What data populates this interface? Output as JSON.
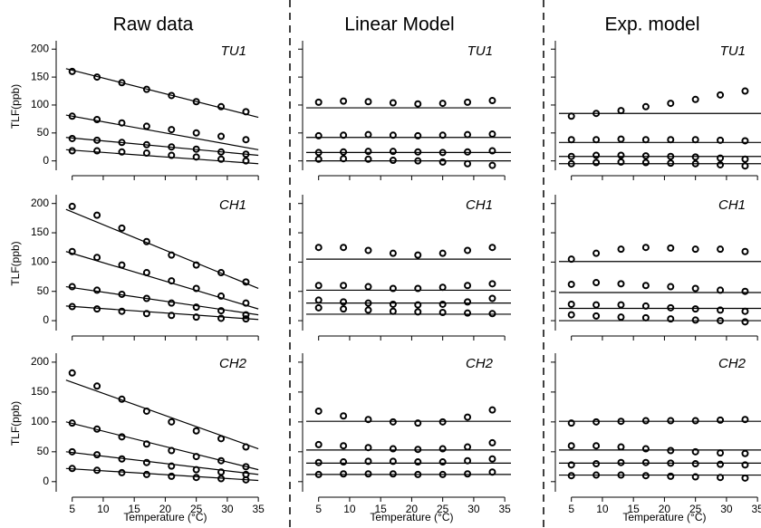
{
  "chart_data": [
    {
      "type": "scatter",
      "title": "Raw data",
      "label": "TU1",
      "ylabel": "TLF(ppb)",
      "xlim": [
        3,
        36
      ],
      "ylim": [
        -20,
        215
      ],
      "xticks": [
        5,
        10,
        15,
        20,
        25,
        30,
        35
      ],
      "yticks": [
        0,
        50,
        100,
        150,
        200
      ],
      "xtick_labels": false,
      "ytick_labels": true,
      "x": [
        5,
        9,
        13,
        17,
        21,
        25,
        29,
        33
      ],
      "series": [
        {
          "values": [
            160,
            150,
            140,
            128,
            117,
            106,
            97,
            88
          ]
        },
        {
          "values": [
            80,
            74,
            68,
            62,
            56,
            50,
            44,
            38
          ]
        },
        {
          "values": [
            40,
            37,
            33,
            29,
            25,
            21,
            16,
            12
          ]
        },
        {
          "values": [
            18,
            18,
            16,
            14,
            10,
            7,
            3,
            0
          ]
        }
      ],
      "lines": [
        {
          "x": [
            4,
            35
          ],
          "values": [
            165,
            78
          ]
        },
        {
          "x": [
            4,
            35
          ],
          "values": [
            82,
            20
          ]
        },
        {
          "x": [
            4,
            35
          ],
          "values": [
            42,
            10
          ]
        },
        {
          "x": [
            4,
            35
          ],
          "values": [
            20,
            -5
          ]
        }
      ]
    },
    {
      "type": "scatter",
      "title": "Linear Model",
      "label": "TU1",
      "xlim": [
        3,
        36
      ],
      "ylim": [
        -20,
        215
      ],
      "xticks": [
        5,
        10,
        15,
        20,
        25,
        30,
        35
      ],
      "yticks": [
        0,
        50,
        100,
        150,
        200
      ],
      "xtick_labels": false,
      "ytick_labels": false,
      "x": [
        5,
        9,
        13,
        17,
        21,
        25,
        29,
        33
      ],
      "series": [
        {
          "values": [
            105,
            107,
            106,
            104,
            102,
            103,
            105,
            108
          ]
        },
        {
          "values": [
            45,
            46,
            47,
            46,
            45,
            46,
            47,
            48
          ]
        },
        {
          "values": [
            15,
            16,
            17,
            17,
            16,
            15,
            16,
            18
          ]
        },
        {
          "values": [
            3,
            4,
            3,
            1,
            0,
            -2,
            -5,
            -8
          ]
        }
      ],
      "lines": [
        {
          "x": [
            3,
            36
          ],
          "values": [
            95,
            95
          ]
        },
        {
          "x": [
            3,
            36
          ],
          "values": [
            42,
            42
          ]
        },
        {
          "x": [
            3,
            36
          ],
          "values": [
            15,
            15
          ]
        },
        {
          "x": [
            3,
            36
          ],
          "values": [
            0,
            0
          ]
        }
      ]
    },
    {
      "type": "scatter",
      "title": "Exp. model",
      "label": "TU1",
      "xlim": [
        3,
        36
      ],
      "ylim": [
        -20,
        215
      ],
      "xticks": [
        5,
        10,
        15,
        20,
        25,
        30,
        35
      ],
      "yticks": [
        0,
        50,
        100,
        150,
        200
      ],
      "xtick_labels": false,
      "ytick_labels": false,
      "x": [
        5,
        9,
        13,
        17,
        21,
        25,
        29,
        33
      ],
      "series": [
        {
          "values": [
            80,
            85,
            90,
            97,
            103,
            110,
            118,
            125
          ]
        },
        {
          "values": [
            38,
            38,
            39,
            38,
            38,
            38,
            37,
            36
          ]
        },
        {
          "values": [
            8,
            10,
            10,
            9,
            8,
            7,
            5,
            3
          ]
        },
        {
          "values": [
            -5,
            -3,
            -2,
            -3,
            -4,
            -5,
            -7,
            -9
          ]
        }
      ],
      "lines": [
        {
          "x": [
            3,
            36
          ],
          "values": [
            85,
            85
          ]
        },
        {
          "x": [
            3,
            36
          ],
          "values": [
            33,
            33
          ]
        },
        {
          "x": [
            3,
            36
          ],
          "values": [
            8,
            8
          ]
        },
        {
          "x": [
            3,
            36
          ],
          "values": [
            -5,
            -5
          ]
        }
      ]
    },
    {
      "type": "scatter",
      "label": "CH1",
      "ylabel": "TLF(ppb)",
      "xlim": [
        3,
        36
      ],
      "ylim": [
        -20,
        215
      ],
      "xticks": [
        5,
        10,
        15,
        20,
        25,
        30,
        35
      ],
      "yticks": [
        0,
        50,
        100,
        150,
        200
      ],
      "xtick_labels": false,
      "ytick_labels": true,
      "x": [
        5,
        9,
        13,
        17,
        21,
        25,
        29,
        33
      ],
      "series": [
        {
          "values": [
            195,
            180,
            158,
            135,
            112,
            95,
            82,
            66
          ]
        },
        {
          "values": [
            118,
            108,
            95,
            82,
            68,
            55,
            42,
            30
          ]
        },
        {
          "values": [
            58,
            52,
            45,
            38,
            30,
            23,
            17,
            10
          ]
        },
        {
          "values": [
            24,
            20,
            16,
            12,
            9,
            6,
            4,
            3
          ]
        }
      ],
      "lines": [
        {
          "x": [
            4,
            35
          ],
          "values": [
            190,
            55
          ]
        },
        {
          "x": [
            4,
            35
          ],
          "values": [
            118,
            20
          ]
        },
        {
          "x": [
            4,
            35
          ],
          "values": [
            58,
            10
          ]
        },
        {
          "x": [
            4,
            35
          ],
          "values": [
            25,
            2
          ]
        }
      ]
    },
    {
      "type": "scatter",
      "label": "CH1",
      "xlim": [
        3,
        36
      ],
      "ylim": [
        -20,
        215
      ],
      "xticks": [
        5,
        10,
        15,
        20,
        25,
        30,
        35
      ],
      "yticks": [
        0,
        50,
        100,
        150,
        200
      ],
      "xtick_labels": false,
      "ytick_labels": false,
      "x": [
        5,
        9,
        13,
        17,
        21,
        25,
        29,
        33
      ],
      "series": [
        {
          "values": [
            125,
            125,
            120,
            115,
            112,
            115,
            120,
            125
          ]
        },
        {
          "values": [
            60,
            60,
            58,
            55,
            55,
            57,
            60,
            63
          ]
        },
        {
          "values": [
            35,
            32,
            30,
            28,
            27,
            28,
            32,
            38
          ]
        },
        {
          "values": [
            22,
            20,
            18,
            16,
            15,
            14,
            13,
            12
          ]
        }
      ],
      "lines": [
        {
          "x": [
            3,
            36
          ],
          "values": [
            105,
            105
          ]
        },
        {
          "x": [
            3,
            36
          ],
          "values": [
            52,
            52
          ]
        },
        {
          "x": [
            3,
            36
          ],
          "values": [
            30,
            30
          ]
        },
        {
          "x": [
            3,
            36
          ],
          "values": [
            11,
            11
          ]
        }
      ]
    },
    {
      "type": "scatter",
      "label": "CH1",
      "xlim": [
        3,
        36
      ],
      "ylim": [
        -20,
        215
      ],
      "xticks": [
        5,
        10,
        15,
        20,
        25,
        30,
        35
      ],
      "yticks": [
        0,
        50,
        100,
        150,
        200
      ],
      "xtick_labels": false,
      "ytick_labels": false,
      "x": [
        5,
        9,
        13,
        17,
        21,
        25,
        29,
        33
      ],
      "series": [
        {
          "values": [
            105,
            115,
            122,
            125,
            124,
            122,
            122,
            118
          ]
        },
        {
          "values": [
            62,
            65,
            63,
            60,
            58,
            55,
            52,
            50
          ]
        },
        {
          "values": [
            28,
            27,
            27,
            25,
            22,
            20,
            18,
            16
          ]
        },
        {
          "values": [
            10,
            8,
            6,
            5,
            3,
            1,
            0,
            -2
          ]
        }
      ],
      "lines": [
        {
          "x": [
            3,
            36
          ],
          "values": [
            101,
            101
          ]
        },
        {
          "x": [
            3,
            36
          ],
          "values": [
            48,
            48
          ]
        },
        {
          "x": [
            3,
            36
          ],
          "values": [
            21,
            21
          ]
        },
        {
          "x": [
            3,
            36
          ],
          "values": [
            0,
            0
          ]
        }
      ]
    },
    {
      "type": "scatter",
      "label": "CH2",
      "ylabel": "TLF(ppb)",
      "xlabel": "Temperature (°C)",
      "xlim": [
        3,
        36
      ],
      "ylim": [
        -20,
        215
      ],
      "xticks": [
        5,
        10,
        15,
        20,
        25,
        30,
        35
      ],
      "yticks": [
        0,
        50,
        100,
        150,
        200
      ],
      "xtick_labels": true,
      "ytick_labels": true,
      "x": [
        5,
        9,
        13,
        17,
        21,
        25,
        29,
        33
      ],
      "series": [
        {
          "values": [
            182,
            160,
            138,
            118,
            100,
            85,
            72,
            58
          ]
        },
        {
          "values": [
            98,
            88,
            75,
            63,
            52,
            42,
            35,
            25
          ]
        },
        {
          "values": [
            50,
            45,
            38,
            32,
            26,
            20,
            16,
            12
          ]
        },
        {
          "values": [
            22,
            19,
            15,
            12,
            9,
            7,
            5,
            3
          ]
        }
      ],
      "lines": [
        {
          "x": [
            4,
            35
          ],
          "values": [
            170,
            55
          ]
        },
        {
          "x": [
            4,
            35
          ],
          "values": [
            100,
            20
          ]
        },
        {
          "x": [
            4,
            35
          ],
          "values": [
            50,
            12
          ]
        },
        {
          "x": [
            4,
            35
          ],
          "values": [
            22,
            2
          ]
        }
      ]
    },
    {
      "type": "scatter",
      "label": "CH2",
      "xlabel": "Temperature (°C)",
      "xlim": [
        3,
        36
      ],
      "ylim": [
        -20,
        215
      ],
      "xticks": [
        5,
        10,
        15,
        20,
        25,
        30,
        35
      ],
      "yticks": [
        0,
        50,
        100,
        150,
        200
      ],
      "xtick_labels": true,
      "ytick_labels": false,
      "x": [
        5,
        9,
        13,
        17,
        21,
        25,
        29,
        33
      ],
      "series": [
        {
          "values": [
            118,
            110,
            104,
            100,
            98,
            100,
            108,
            120
          ]
        },
        {
          "values": [
            62,
            60,
            57,
            55,
            54,
            55,
            58,
            65
          ]
        },
        {
          "values": [
            32,
            33,
            34,
            34,
            33,
            33,
            35,
            38
          ]
        },
        {
          "values": [
            12,
            13,
            13,
            13,
            12,
            12,
            13,
            16
          ]
        }
      ],
      "lines": [
        {
          "x": [
            3,
            36
          ],
          "values": [
            101,
            101
          ]
        },
        {
          "x": [
            3,
            36
          ],
          "values": [
            53,
            53
          ]
        },
        {
          "x": [
            3,
            36
          ],
          "values": [
            31,
            31
          ]
        },
        {
          "x": [
            3,
            36
          ],
          "values": [
            12,
            12
          ]
        }
      ]
    },
    {
      "type": "scatter",
      "label": "CH2",
      "xlabel": "Temperature (°C)",
      "xlim": [
        3,
        36
      ],
      "ylim": [
        -20,
        215
      ],
      "xticks": [
        5,
        10,
        15,
        20,
        25,
        30,
        35
      ],
      "yticks": [
        0,
        50,
        100,
        150,
        200
      ],
      "xtick_labels": true,
      "ytick_labels": false,
      "x": [
        5,
        9,
        13,
        17,
        21,
        25,
        29,
        33
      ],
      "series": [
        {
          "values": [
            98,
            100,
            101,
            102,
            102,
            102,
            103,
            104
          ]
        },
        {
          "values": [
            60,
            60,
            58,
            55,
            52,
            50,
            48,
            47
          ]
        },
        {
          "values": [
            28,
            30,
            32,
            32,
            31,
            30,
            29,
            28
          ]
        },
        {
          "values": [
            10,
            11,
            11,
            10,
            9,
            8,
            7,
            6
          ]
        }
      ],
      "lines": [
        {
          "x": [
            3,
            36
          ],
          "values": [
            101,
            101
          ]
        },
        {
          "x": [
            3,
            36
          ],
          "values": [
            53,
            53
          ]
        },
        {
          "x": [
            3,
            36
          ],
          "values": [
            31,
            31
          ]
        },
        {
          "x": [
            3,
            36
          ],
          "values": [
            11,
            11
          ]
        }
      ]
    }
  ]
}
